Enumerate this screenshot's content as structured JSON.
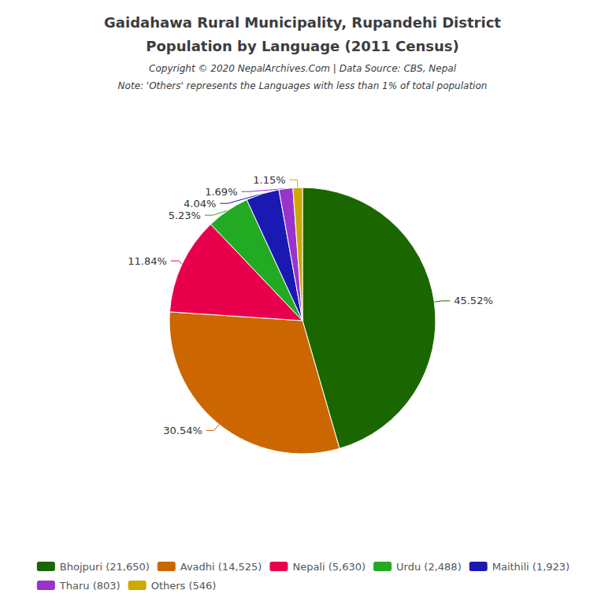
{
  "chart_data": {
    "type": "pie",
    "title": "Gaidahawa Rural Municipality, Rupandehi District",
    "subtitle": "Population by Language (2011 Census)",
    "annotations": [
      "Copyright © 2020 NepalArchives.Com | Data Source: CBS, Nepal",
      "Note: 'Others' represents the Languages with less than 1% of total population"
    ],
    "categories": [
      "Bhojpuri (21,650)",
      "Avadhi (14,525)",
      "Nepali (5,630)",
      "Urdu (2,488)",
      "Maithili (1,923)",
      "Tharu (803)",
      "Others (546)"
    ],
    "values": [
      45.52,
      30.54,
      11.84,
      5.23,
      4.04,
      1.69,
      1.15
    ],
    "value_labels": [
      "45.52%",
      "30.54%",
      "11.84%",
      "5.23%",
      "4.04%",
      "1.69%",
      "1.15%"
    ],
    "colors": [
      "#1a6600",
      "#cc6600",
      "#e8004d",
      "#22aa22",
      "#1a1ab3",
      "#9933cc",
      "#ccaa00"
    ],
    "data_labels": true,
    "legend": "bottom"
  }
}
